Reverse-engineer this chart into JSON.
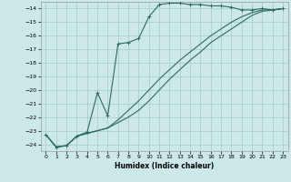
{
  "xlabel": "Humidex (Indice chaleur)",
  "bg_color": "#cce8e8",
  "grid_color": "#aad0d0",
  "line_color": "#2d6b5e",
  "xlim": [
    -0.5,
    23.5
  ],
  "ylim": [
    -24.5,
    -13.5
  ],
  "yticks": [
    -14,
    -15,
    -16,
    -17,
    -18,
    -19,
    -20,
    -21,
    -22,
    -23,
    -24
  ],
  "xticks": [
    0,
    1,
    2,
    3,
    4,
    5,
    6,
    7,
    8,
    9,
    10,
    11,
    12,
    13,
    14,
    15,
    16,
    17,
    18,
    19,
    20,
    21,
    22,
    23
  ],
  "series1_x": [
    0,
    1,
    2,
    3,
    4,
    5,
    6,
    7,
    8,
    9,
    10,
    11,
    12,
    13,
    14,
    15,
    16,
    17,
    18,
    19,
    20,
    21,
    22,
    23
  ],
  "series1_y": [
    -23.3,
    -24.2,
    -24.1,
    -23.4,
    -23.1,
    -20.2,
    -21.9,
    -16.6,
    -16.5,
    -16.2,
    -14.6,
    -13.7,
    -13.6,
    -13.6,
    -13.7,
    -13.7,
    -13.8,
    -13.8,
    -13.9,
    -14.1,
    -14.1,
    -14.0,
    -14.1,
    -14.0
  ],
  "series2_x": [
    0,
    1,
    2,
    3,
    4,
    5,
    6,
    7,
    8,
    9,
    10,
    11,
    12,
    13,
    14,
    15,
    16,
    17,
    18,
    19,
    20,
    21,
    22,
    23
  ],
  "series2_y": [
    -23.3,
    -24.2,
    -24.1,
    -23.4,
    -23.2,
    -23.0,
    -22.8,
    -22.4,
    -22.0,
    -21.5,
    -20.8,
    -20.0,
    -19.2,
    -18.5,
    -17.8,
    -17.2,
    -16.5,
    -16.0,
    -15.5,
    -15.0,
    -14.5,
    -14.2,
    -14.1,
    -14.0
  ],
  "series3_x": [
    0,
    1,
    2,
    3,
    4,
    5,
    6,
    7,
    8,
    9,
    10,
    11,
    12,
    13,
    14,
    15,
    16,
    17,
    18,
    19,
    20,
    21,
    22,
    23
  ],
  "series3_y": [
    -23.3,
    -24.2,
    -24.1,
    -23.4,
    -23.2,
    -23.0,
    -22.8,
    -22.2,
    -21.5,
    -20.8,
    -20.0,
    -19.2,
    -18.5,
    -17.8,
    -17.2,
    -16.6,
    -16.0,
    -15.5,
    -15.0,
    -14.6,
    -14.3,
    -14.1,
    -14.1,
    -14.0
  ],
  "xlabel_fontsize": 5.5,
  "tick_fontsize": 4.5,
  "linewidth": 0.8,
  "marker_size": 2.5
}
